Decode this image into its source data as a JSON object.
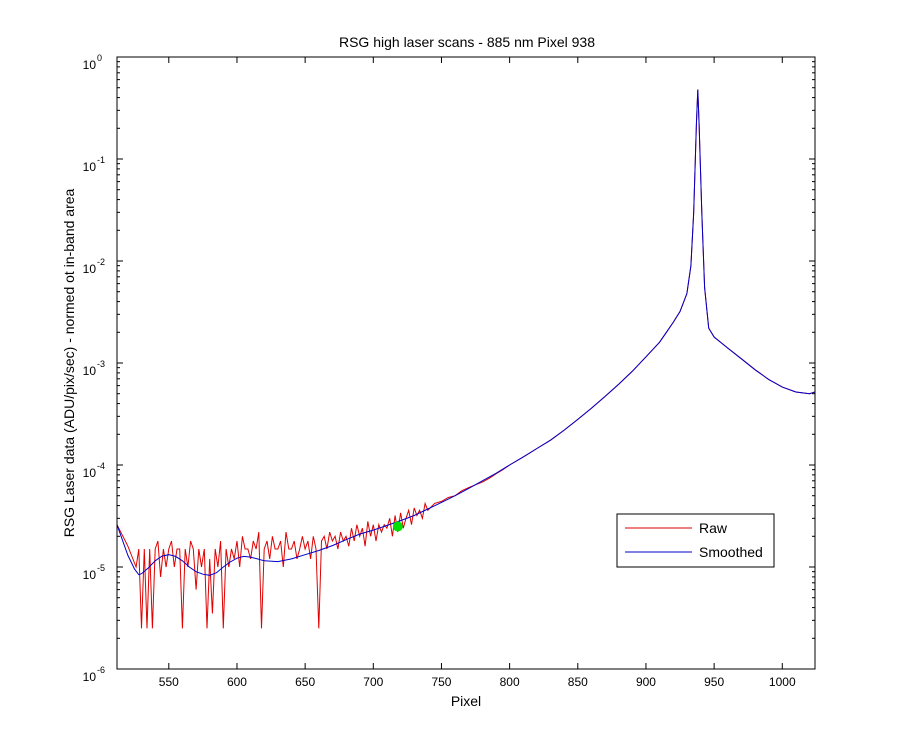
{
  "chart_data": {
    "type": "line",
    "title": "RSG high laser scans  - 885 nm    Pixel 938",
    "xlabel": "Pixel",
    "ylabel": "RSG Laser data (ADU/pix/sec) - normed ot in-band area",
    "xlim": [
      512,
      1024
    ],
    "ylim": [
      1e-06,
      1
    ],
    "yscale": "log",
    "grid": false,
    "legend_position": "lower-right",
    "x_ticks": [
      550,
      600,
      650,
      700,
      750,
      800,
      850,
      900,
      950,
      1000
    ],
    "y_ticks": [
      {
        "base": "10",
        "exp": "-6",
        "value": 1e-06
      },
      {
        "base": "10",
        "exp": "-5",
        "value": 1e-05
      },
      {
        "base": "10",
        "exp": "-4",
        "value": 0.0001
      },
      {
        "base": "10",
        "exp": "-3",
        "value": 0.001
      },
      {
        "base": "10",
        "exp": "-2",
        "value": 0.01
      },
      {
        "base": "10",
        "exp": "-1",
        "value": 0.1
      },
      {
        "base": "10",
        "exp": "0",
        "value": 1
      }
    ],
    "series": [
      {
        "name": "Raw",
        "color": "#e00000",
        "x": [
          512,
          520,
          526,
          528,
          530,
          532,
          534,
          536,
          538,
          540,
          542,
          544,
          546,
          548,
          550,
          552,
          554,
          556,
          558,
          560,
          562,
          564,
          566,
          568,
          570,
          572,
          574,
          576,
          578,
          580,
          582,
          584,
          586,
          588,
          590,
          592,
          594,
          596,
          598,
          600,
          602,
          604,
          606,
          608,
          610,
          612,
          614,
          616,
          618,
          620,
          622,
          624,
          626,
          628,
          630,
          632,
          634,
          636,
          638,
          640,
          642,
          644,
          646,
          648,
          650,
          652,
          654,
          656,
          658,
          660,
          662,
          664,
          666,
          668,
          670,
          672,
          674,
          676,
          678,
          680,
          682,
          684,
          686,
          688,
          690,
          692,
          694,
          696,
          698,
          700,
          702,
          704,
          706,
          708,
          710,
          712,
          714,
          716,
          718,
          720,
          722,
          724,
          726,
          728,
          730,
          732,
          734,
          736,
          738,
          740,
          745,
          750,
          755,
          760,
          765,
          770,
          775,
          780,
          785,
          790,
          795,
          800,
          810,
          820,
          830,
          840,
          850,
          860,
          870,
          880,
          890,
          900,
          910,
          915,
          920,
          925,
          930,
          933,
          935,
          937,
          938,
          939,
          941,
          943,
          946,
          950,
          960,
          970,
          980,
          990,
          1000,
          1010,
          1020,
          1024
        ],
        "y": [
          2.6e-05,
          1.6e-05,
          1e-05,
          1.5e-05,
          2.5e-06,
          1.5e-05,
          2.5e-06,
          1.5e-05,
          2.5e-06,
          1.5e-05,
          1.8e-05,
          8e-06,
          1.5e-05,
          1e-05,
          1.5e-05,
          1.8e-05,
          1e-05,
          1.5e-05,
          1.5e-05,
          2.5e-06,
          1.5e-05,
          1e-05,
          1.8e-05,
          1.5e-05,
          6e-06,
          1.5e-05,
          1e-05,
          1.5e-05,
          2.5e-06,
          1.2e-05,
          3.5e-06,
          1.5e-05,
          1e-05,
          1.8e-05,
          2.5e-06,
          1.5e-05,
          1e-05,
          1.5e-05,
          1.2e-05,
          1.8e-05,
          1e-05,
          2e-05,
          1.5e-05,
          1.5e-05,
          1.2e-05,
          1.8e-05,
          1.5e-05,
          2.2e-05,
          2.5e-06,
          1.5e-05,
          1.8e-05,
          1.2e-05,
          2e-05,
          1.5e-05,
          1.5e-05,
          1.8e-05,
          1e-05,
          2.2e-05,
          1.5e-05,
          1.5e-05,
          1.8e-05,
          1.2e-05,
          1.5e-05,
          2e-05,
          1.5e-05,
          1.8e-05,
          1.2e-05,
          2e-05,
          1.5e-05,
          2.5e-06,
          1.8e-05,
          2e-05,
          1.5e-05,
          2.2e-05,
          1.8e-05,
          2e-05,
          1.5e-05,
          2.2e-05,
          1.8e-05,
          2e-05,
          1.6e-05,
          2.4e-05,
          1.8e-05,
          2.6e-05,
          2e-05,
          2.4e-05,
          1.6e-05,
          2.8e-05,
          2e-05,
          2.6e-05,
          1.8e-05,
          2.6e-05,
          2.2e-05,
          2.6e-05,
          2.4e-05,
          3e-05,
          2e-05,
          3.2e-05,
          2.2e-05,
          3.4e-05,
          2.4e-05,
          3e-05,
          3.6e-05,
          2.6e-05,
          3.8e-05,
          3.2e-05,
          3.6e-05,
          3e-05,
          4.2e-05,
          3.6e-05,
          4.2e-05,
          4.4e-05,
          4.8e-05,
          5e-05,
          5.6e-05,
          6e-05,
          6.4e-05,
          6.8e-05,
          7.4e-05,
          8.2e-05,
          9e-05,
          0.0001,
          0.00012,
          0.000145,
          0.000175,
          0.00022,
          0.00028,
          0.00036,
          0.00047,
          0.00062,
          0.00083,
          0.00115,
          0.0016,
          0.002,
          0.0025,
          0.0032,
          0.0048,
          0.009,
          0.03,
          0.22,
          0.48,
          0.22,
          0.03,
          0.0055,
          0.0022,
          0.0018,
          0.0014,
          0.0011,
          0.00086,
          0.00069,
          0.00058,
          0.00052,
          0.0005,
          0.00052
        ]
      },
      {
        "name": "Smoothed",
        "color": "#0000cc",
        "x": [
          512,
          515,
          520,
          525,
          528,
          530,
          535,
          540,
          545,
          550,
          555,
          560,
          565,
          570,
          575,
          580,
          585,
          590,
          595,
          600,
          605,
          610,
          615,
          620,
          630,
          640,
          650,
          660,
          670,
          680,
          690,
          700,
          710,
          720,
          730,
          740,
          750,
          760,
          770,
          780,
          790,
          800,
          810,
          820,
          830,
          840,
          850,
          860,
          870,
          880,
          890,
          900,
          910,
          915,
          920,
          925,
          930,
          933,
          935,
          937,
          938,
          939,
          941,
          943,
          946,
          950,
          960,
          970,
          980,
          990,
          1000,
          1010,
          1020,
          1024
        ],
        "y": [
          2.6e-05,
          2e-05,
          1.3e-05,
          9.5e-06,
          8.4e-06,
          8.6e-06,
          9.8e-06,
          1.15e-05,
          1.28e-05,
          1.32e-05,
          1.27e-05,
          1.15e-05,
          1e-05,
          9e-06,
          8.5e-06,
          8.3e-06,
          8.8e-06,
          1e-05,
          1.12e-05,
          1.22e-05,
          1.27e-05,
          1.25e-05,
          1.2e-05,
          1.15e-05,
          1.13e-05,
          1.2e-05,
          1.32e-05,
          1.45e-05,
          1.62e-05,
          1.85e-05,
          2.1e-05,
          2.3e-05,
          2.55e-05,
          2.85e-05,
          3.2e-05,
          3.7e-05,
          4.3e-05,
          5e-05,
          5.9e-05,
          7e-05,
          8.3e-05,
          0.0001,
          0.00012,
          0.000145,
          0.000175,
          0.00022,
          0.00028,
          0.00036,
          0.00047,
          0.00062,
          0.00083,
          0.00115,
          0.0016,
          0.002,
          0.0025,
          0.0032,
          0.0048,
          0.009,
          0.03,
          0.22,
          0.48,
          0.22,
          0.03,
          0.0055,
          0.0022,
          0.0018,
          0.0014,
          0.0011,
          0.00086,
          0.00069,
          0.00058,
          0.00052,
          0.0005,
          0.00052
        ]
      }
    ],
    "marker": {
      "x": 718,
      "y": 2.5e-05,
      "color": "#00e000"
    }
  }
}
